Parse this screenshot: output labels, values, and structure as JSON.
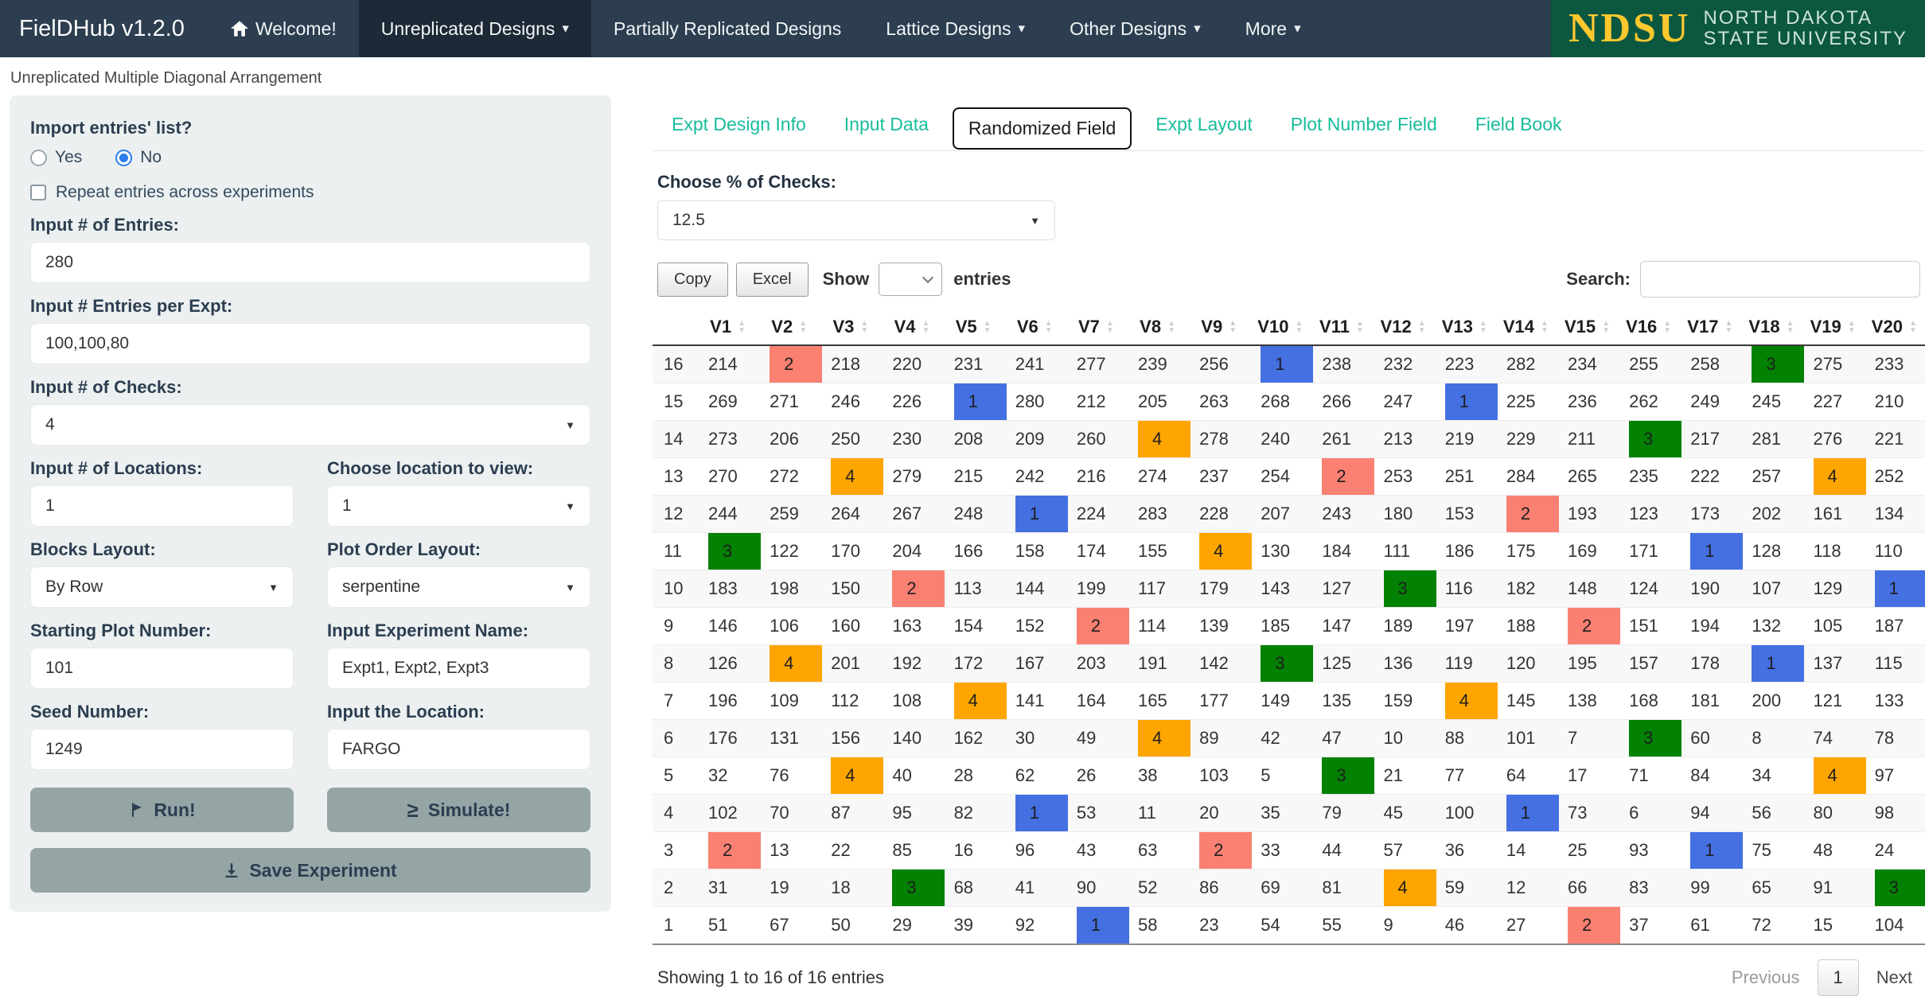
{
  "navbar": {
    "brand": "FielDHub v1.2.0",
    "items": [
      {
        "label": "Welcome!",
        "icon": "home",
        "caret": false,
        "active": false
      },
      {
        "label": "Unreplicated Designs",
        "caret": true,
        "active": true
      },
      {
        "label": "Partially Replicated Designs",
        "caret": false,
        "active": false
      },
      {
        "label": "Lattice Designs",
        "caret": true,
        "active": false
      },
      {
        "label": "Other Designs",
        "caret": true,
        "active": false
      },
      {
        "label": "More",
        "caret": true,
        "active": false
      }
    ],
    "logo": {
      "abbr": "NDSU",
      "line1": "NORTH DAKOTA",
      "line2": "STATE UNIVERSITY"
    }
  },
  "page_title": "Unreplicated Multiple Diagonal Arrangement",
  "sidebar": {
    "import_label": "Import entries' list?",
    "radio_options": [
      "Yes",
      "No"
    ],
    "radio_selected": "No",
    "repeat_label": "Repeat entries across experiments",
    "repeat_checked": false,
    "entries": {
      "label": "Input # of Entries:",
      "value": "280"
    },
    "entries_per_expt": {
      "label": "Input # Entries per Expt:",
      "value": "100,100,80"
    },
    "checks": {
      "label": "Input # of Checks:",
      "value": "4"
    },
    "locations": {
      "label": "Input # of Locations:",
      "value": "1"
    },
    "location_view": {
      "label": "Choose location to view:",
      "value": "1"
    },
    "blocks_layout": {
      "label": "Blocks Layout:",
      "value": "By Row"
    },
    "plot_order": {
      "label": "Plot Order Layout:",
      "value": "serpentine"
    },
    "starting_plot": {
      "label": "Starting Plot Number:",
      "value": "101"
    },
    "expt_name": {
      "label": "Input Experiment Name:",
      "value": "Expt1, Expt2, Expt3"
    },
    "seed": {
      "label": "Seed Number:",
      "value": "1249"
    },
    "location_input": {
      "label": "Input the Location:",
      "value": "FARGO"
    },
    "run_label": "Run!",
    "simulate_label": "Simulate!",
    "simulate_icon": "≥",
    "save_label": "Save Experiment"
  },
  "tabs": [
    {
      "label": "Expt Design Info",
      "active": false
    },
    {
      "label": "Input Data",
      "active": false
    },
    {
      "label": "Randomized Field",
      "active": true
    },
    {
      "label": "Expt Layout",
      "active": false
    },
    {
      "label": "Plot Number Field",
      "active": false
    },
    {
      "label": "Field Book",
      "active": false
    }
  ],
  "checks_percent": {
    "label": "Choose % of Checks:",
    "value": "12.5"
  },
  "table_controls": {
    "copy": "Copy",
    "excel": "Excel",
    "show": "Show",
    "entries": "entries",
    "search_label": "Search:",
    "search_value": ""
  },
  "table": {
    "columns": [
      "V1",
      "V2",
      "V3",
      "V4",
      "V5",
      "V6",
      "V7",
      "V8",
      "V9",
      "V10",
      "V11",
      "V12",
      "V13",
      "V14",
      "V15",
      "V16",
      "V17",
      "V18",
      "V19",
      "V20"
    ],
    "row_labels": [
      16,
      15,
      14,
      13,
      12,
      11,
      10,
      9,
      8,
      7,
      6,
      5,
      4,
      3,
      2,
      1
    ],
    "rows": [
      [
        214,
        2,
        218,
        220,
        231,
        241,
        277,
        239,
        256,
        1,
        238,
        232,
        223,
        282,
        234,
        255,
        258,
        3,
        275,
        233
      ],
      [
        269,
        271,
        246,
        226,
        1,
        280,
        212,
        205,
        263,
        268,
        266,
        247,
        1,
        225,
        236,
        262,
        249,
        245,
        227,
        210
      ],
      [
        273,
        206,
        250,
        230,
        208,
        209,
        260,
        4,
        278,
        240,
        261,
        213,
        219,
        229,
        211,
        3,
        217,
        281,
        276,
        221
      ],
      [
        270,
        272,
        4,
        279,
        215,
        242,
        216,
        274,
        237,
        254,
        2,
        253,
        251,
        284,
        265,
        235,
        222,
        257,
        4,
        252
      ],
      [
        244,
        259,
        264,
        267,
        248,
        1,
        224,
        283,
        228,
        207,
        243,
        180,
        153,
        2,
        193,
        123,
        173,
        202,
        161,
        134
      ],
      [
        3,
        122,
        170,
        204,
        166,
        158,
        174,
        155,
        4,
        130,
        184,
        111,
        186,
        175,
        169,
        171,
        1,
        128,
        118,
        110
      ],
      [
        183,
        198,
        150,
        2,
        113,
        144,
        199,
        117,
        179,
        143,
        127,
        3,
        116,
        182,
        148,
        124,
        190,
        107,
        129,
        1
      ],
      [
        146,
        106,
        160,
        163,
        154,
        152,
        2,
        114,
        139,
        185,
        147,
        189,
        197,
        188,
        2,
        151,
        194,
        132,
        105,
        187
      ],
      [
        126,
        4,
        201,
        192,
        172,
        167,
        203,
        191,
        142,
        3,
        125,
        136,
        119,
        120,
        195,
        157,
        178,
        1,
        137,
        115
      ],
      [
        196,
        109,
        112,
        108,
        4,
        141,
        164,
        165,
        177,
        149,
        135,
        159,
        4,
        145,
        138,
        168,
        181,
        200,
        121,
        133
      ],
      [
        176,
        131,
        156,
        140,
        162,
        30,
        49,
        4,
        89,
        42,
        47,
        10,
        88,
        101,
        7,
        3,
        60,
        8,
        74,
        78
      ],
      [
        32,
        76,
        4,
        40,
        28,
        62,
        26,
        38,
        103,
        5,
        3,
        21,
        77,
        64,
        17,
        71,
        84,
        34,
        4,
        97
      ],
      [
        102,
        70,
        87,
        95,
        82,
        1,
        53,
        11,
        20,
        35,
        79,
        45,
        100,
        1,
        73,
        6,
        94,
        56,
        80,
        98
      ],
      [
        2,
        13,
        22,
        85,
        16,
        96,
        43,
        63,
        2,
        33,
        44,
        57,
        36,
        14,
        25,
        93,
        1,
        75,
        48,
        24
      ],
      [
        31,
        19,
        18,
        3,
        68,
        41,
        90,
        52,
        86,
        69,
        81,
        4,
        59,
        12,
        66,
        83,
        99,
        65,
        91,
        3
      ],
      [
        51,
        67,
        50,
        29,
        39,
        92,
        1,
        58,
        23,
        54,
        55,
        9,
        46,
        27,
        2,
        37,
        61,
        72,
        15,
        104
      ]
    ],
    "check_colors": {
      "1": "#4470E2",
      "2": "#FA8072",
      "3": "#028102",
      "4": "#FFA500"
    }
  },
  "table_footer": {
    "info": "Showing 1 to 16 of 16 entries",
    "previous": "Previous",
    "page": "1",
    "next": "Next"
  },
  "colors": {
    "navbar_bg": "#2C3E50",
    "navbar_active_bg": "#1D2936",
    "teal": "#18BC9C",
    "logo_green": "#0C5740",
    "logo_yellow": "#FFC82E",
    "panel_bg": "#ECF0F1",
    "label_navy": "#2C3E50",
    "button_gray": "#95A5A6"
  }
}
